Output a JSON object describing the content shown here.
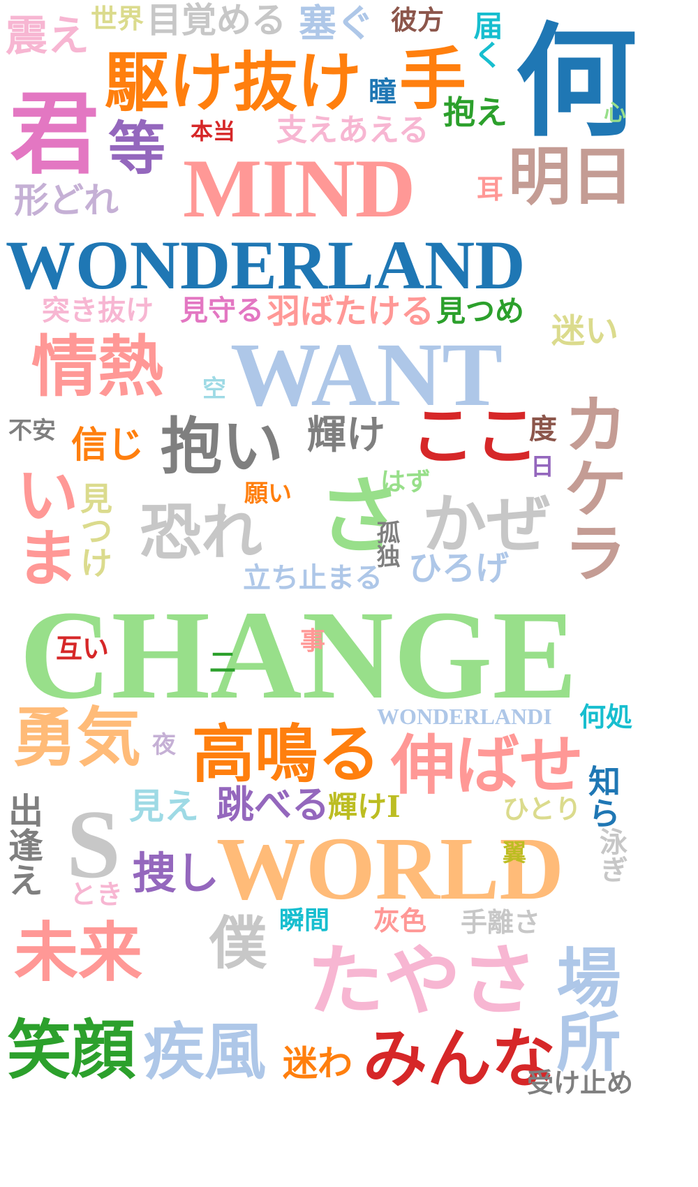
{
  "palette": {
    "pink": "#f0a0c0",
    "orange": "#ff7f0e",
    "blue": "#1f77b4",
    "magenta": "#e377c2",
    "purple": "#9467bd",
    "red": "#d62728",
    "salmon": "#ff9896",
    "lavender": "#c5b0d5",
    "tan": "#c49c94",
    "gray": "#7f7f7f",
    "lightgray": "#c7c7c7",
    "lightblue": "#aec7e8",
    "green": "#2ca02c",
    "lightgreen": "#98df8a",
    "olive": "#dbdb8d",
    "cyan": "#17becf",
    "lightcyan": "#9edae5",
    "peach": "#ffbb78",
    "brown": "#8c564b",
    "gold": "#bcbd22"
  },
  "words": [
    {
      "id": "w1",
      "text": "震え"
    },
    {
      "id": "w2",
      "text": "世界"
    },
    {
      "id": "w3",
      "text": "目覚める"
    },
    {
      "id": "w4",
      "text": "塞ぐ"
    },
    {
      "id": "w5",
      "text": "彼方"
    },
    {
      "id": "w6",
      "text": "届く"
    },
    {
      "id": "w7",
      "text": "何"
    },
    {
      "id": "w8",
      "text": "駆け抜け"
    },
    {
      "id": "w9",
      "text": "瞳"
    },
    {
      "id": "w10",
      "text": "手"
    },
    {
      "id": "w11",
      "text": "抱え"
    },
    {
      "id": "w12",
      "text": "心"
    },
    {
      "id": "w13",
      "text": "君"
    },
    {
      "id": "w14",
      "text": "等"
    },
    {
      "id": "w15",
      "text": "本当"
    },
    {
      "id": "w16",
      "text": "支えあえる"
    },
    {
      "id": "w17",
      "text": "MIND"
    },
    {
      "id": "w18",
      "text": "耳"
    },
    {
      "id": "w19",
      "text": "明日"
    },
    {
      "id": "w20",
      "text": "形どれ"
    },
    {
      "id": "w21",
      "text": "WONDERLAND"
    },
    {
      "id": "w22",
      "text": "突き抜け"
    },
    {
      "id": "w23",
      "text": "見守る"
    },
    {
      "id": "w24",
      "text": "羽ばたける"
    },
    {
      "id": "w25",
      "text": "見つめ"
    },
    {
      "id": "w26",
      "text": "迷い"
    },
    {
      "id": "w27",
      "text": "情熱"
    },
    {
      "id": "w28",
      "text": "空"
    },
    {
      "id": "w29",
      "text": "WANT"
    },
    {
      "id": "w30",
      "text": "不安"
    },
    {
      "id": "w31",
      "text": "信じ"
    },
    {
      "id": "w32",
      "text": "抱い"
    },
    {
      "id": "w33",
      "text": "輝け"
    },
    {
      "id": "w34",
      "text": "ここ"
    },
    {
      "id": "w35",
      "text": "度"
    },
    {
      "id": "w36",
      "text": "日"
    },
    {
      "id": "w37",
      "text": "カケラ"
    },
    {
      "id": "w38",
      "text": "いま"
    },
    {
      "id": "w39",
      "text": "見つけ"
    },
    {
      "id": "w40",
      "text": "願い"
    },
    {
      "id": "w41",
      "text": "はず"
    },
    {
      "id": "w42",
      "text": "さ"
    },
    {
      "id": "w43",
      "text": "恐れ"
    },
    {
      "id": "w44",
      "text": "孤独"
    },
    {
      "id": "w45",
      "text": "かぜ"
    },
    {
      "id": "w46",
      "text": "立ち止まる"
    },
    {
      "id": "w47",
      "text": "ひろげ"
    },
    {
      "id": "w48",
      "text": "CHANGE"
    },
    {
      "id": "w49",
      "text": "互い"
    },
    {
      "id": "w50",
      "text": "事"
    },
    {
      "id": "w51",
      "text": "二"
    },
    {
      "id": "w52",
      "text": "WONDERLANDI"
    },
    {
      "id": "w53",
      "text": "何処"
    },
    {
      "id": "w54",
      "text": "勇気"
    },
    {
      "id": "w55",
      "text": "夜"
    },
    {
      "id": "w56",
      "text": "高鳴る"
    },
    {
      "id": "w57",
      "text": "伸ばせ"
    },
    {
      "id": "w58",
      "text": "知ら"
    },
    {
      "id": "w59",
      "text": "出逢え"
    },
    {
      "id": "w60",
      "text": "S"
    },
    {
      "id": "w61",
      "text": "見え"
    },
    {
      "id": "w62",
      "text": "跳べる"
    },
    {
      "id": "w63",
      "text": "輝けI"
    },
    {
      "id": "w64",
      "text": "ひとり"
    },
    {
      "id": "w65",
      "text": "WORLD"
    },
    {
      "id": "w66",
      "text": "泳ぎ"
    },
    {
      "id": "w67",
      "text": "翼"
    },
    {
      "id": "w68",
      "text": "捜し"
    },
    {
      "id": "w69",
      "text": "とき"
    },
    {
      "id": "w70",
      "text": "瞬間"
    },
    {
      "id": "w71",
      "text": "灰色"
    },
    {
      "id": "w72",
      "text": "手離さ"
    },
    {
      "id": "w73",
      "text": "未来"
    },
    {
      "id": "w74",
      "text": "僕"
    },
    {
      "id": "w75",
      "text": "たやさ"
    },
    {
      "id": "w76",
      "text": "場所"
    },
    {
      "id": "w77",
      "text": "笑顔"
    },
    {
      "id": "w78",
      "text": "疾風"
    },
    {
      "id": "w79",
      "text": "迷わ"
    },
    {
      "id": "w80",
      "text": "みんな"
    },
    {
      "id": "w81",
      "text": "受け止め"
    }
  ]
}
